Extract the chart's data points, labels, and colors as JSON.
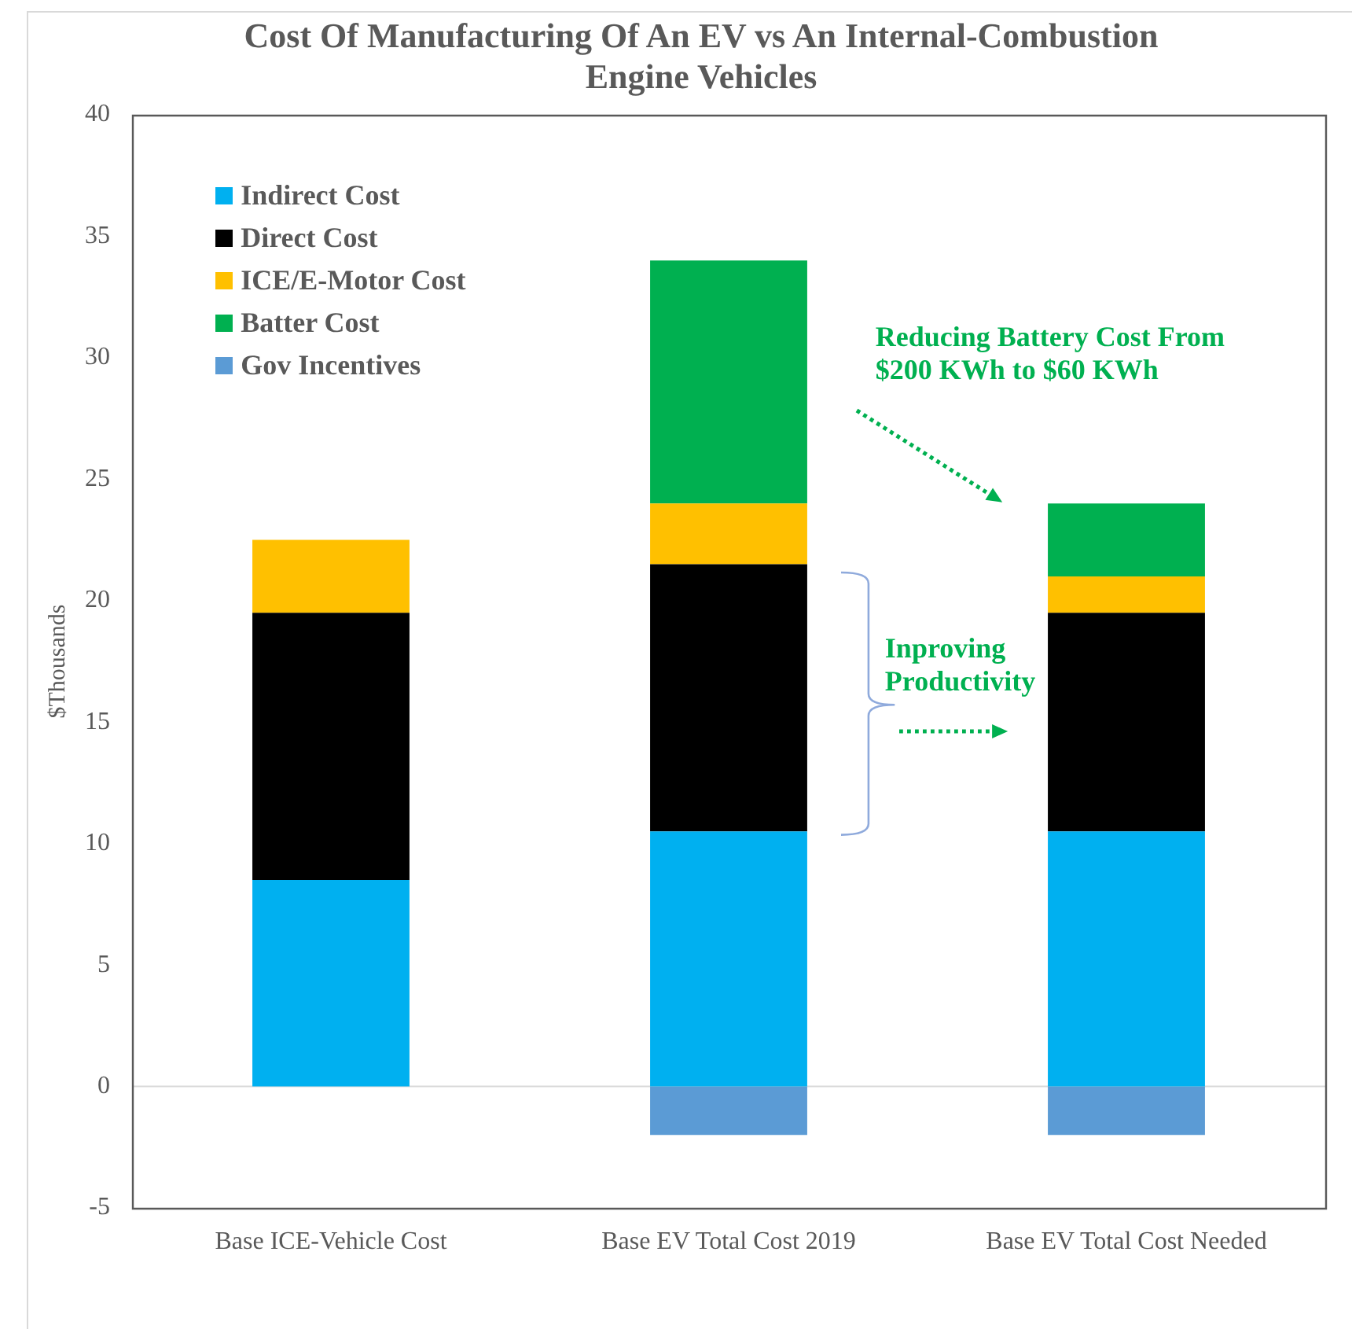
{
  "chart_data": {
    "type": "bar",
    "title": "Cost Of Manufacturing Of An EV vs An Internal-Combustion Engine Vehicles",
    "ylabel": "$Thousands",
    "categories": [
      "Base ICE-Vehicle Cost",
      "Base EV Total Cost 2019",
      "Base EV Total Cost Needed"
    ],
    "series": [
      {
        "name": "Indirect Cost",
        "color": "#00b0f0",
        "values": [
          8.5,
          10.5,
          10.5
        ]
      },
      {
        "name": "Direct Cost",
        "color": "#000000",
        "values": [
          11,
          11,
          9
        ]
      },
      {
        "name": "ICE/E-Motor Cost",
        "color": "#ffc000",
        "values": [
          3,
          2.5,
          1.5
        ]
      },
      {
        "name": "Batter Cost",
        "color": "#00b050",
        "values": [
          null,
          10,
          3
        ]
      },
      {
        "name": "Gov Incentives",
        "color": "#5b9bd5",
        "values": [
          null,
          -2,
          -2
        ]
      }
    ],
    "stacked": true,
    "ylim": [
      -5,
      40
    ],
    "yticks": [
      -5,
      0,
      5,
      10,
      15,
      20,
      25,
      30,
      35,
      40
    ],
    "legend": "top left",
    "ref_lines": [
      {
        "axis": "y",
        "value": 0,
        "color": "#d9d9d9"
      }
    ],
    "annotations": [
      "Reducing Battery Cost From $200 KWh to $60 KWh",
      "Inproving Productivity"
    ]
  }
}
